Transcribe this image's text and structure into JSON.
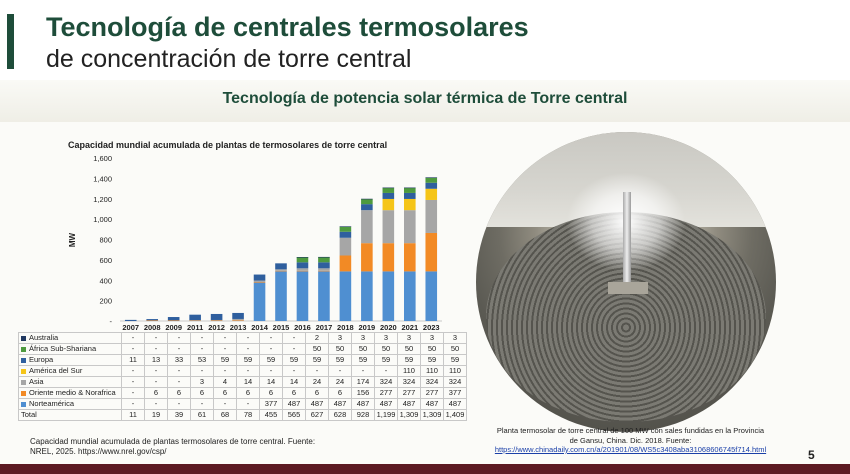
{
  "header": {
    "title_line1": "Tecnología de centrales termosolares",
    "title_line2": "de concentración de torre central",
    "subtitle": "Tecnología de potencia solar térmica de Torre central"
  },
  "chart_data": {
    "type": "bar",
    "stacked": true,
    "title": "Capacidad mundial acumulada de plantas de termosolares de torre central",
    "ylabel": "MW",
    "xlabel": "",
    "ylim": [
      0,
      1600
    ],
    "yticks": [
      "1,600",
      "1,400",
      "1,200",
      "1,000",
      "800",
      "600",
      "400",
      "200",
      "-"
    ],
    "categories": [
      "2007",
      "2008",
      "2009",
      "2011",
      "2012",
      "2013",
      "2014",
      "2015",
      "2016",
      "2017",
      "2018",
      "2019",
      "2020",
      "2021",
      "2023"
    ],
    "series": [
      {
        "name": "Norteamérica",
        "color": "#4f8fd1",
        "values": [
          0,
          0,
          0,
          0,
          0,
          0,
          377,
          487,
          487,
          487,
          487,
          487,
          487,
          487,
          487
        ],
        "display": [
          "-",
          "-",
          "-",
          "-",
          "-",
          "-",
          "377",
          "487",
          "487",
          "487",
          "487",
          "487",
          "487",
          "487",
          "487"
        ]
      },
      {
        "name": "Oriente medio & Norafrica",
        "color": "#f28a25",
        "values": [
          0,
          6,
          6,
          6,
          6,
          6,
          6,
          6,
          6,
          6,
          156,
          277,
          277,
          277,
          377
        ],
        "display": [
          "-",
          "6",
          "6",
          "6",
          "6",
          "6",
          "6",
          "6",
          "6",
          "6",
          "156",
          "277",
          "277",
          "277",
          "377"
        ]
      },
      {
        "name": "Asia",
        "color": "#a6a6a6",
        "values": [
          0,
          0,
          0,
          3,
          4,
          14,
          14,
          14,
          24,
          24,
          174,
          324,
          324,
          324,
          324
        ],
        "display": [
          "-",
          "-",
          "-",
          "3",
          "4",
          "14",
          "14",
          "14",
          "24",
          "24",
          "174",
          "324",
          "324",
          "324",
          "324"
        ]
      },
      {
        "name": "América del Sur",
        "color": "#f5c518",
        "values": [
          0,
          0,
          0,
          0,
          0,
          0,
          0,
          0,
          0,
          0,
          0,
          0,
          110,
          110,
          110
        ],
        "display": [
          "-",
          "-",
          "-",
          "-",
          "-",
          "-",
          "-",
          "-",
          "-",
          "-",
          "-",
          "-",
          "110",
          "110",
          "110"
        ]
      },
      {
        "name": "Europa",
        "color": "#2f5f9e",
        "values": [
          11,
          13,
          33,
          53,
          59,
          59,
          59,
          59,
          59,
          59,
          59,
          59,
          59,
          59,
          59
        ],
        "display": [
          "11",
          "13",
          "33",
          "53",
          "59",
          "59",
          "59",
          "59",
          "59",
          "59",
          "59",
          "59",
          "59",
          "59",
          "59"
        ]
      },
      {
        "name": "África Sub-Shariana",
        "color": "#4e9a3f",
        "values": [
          0,
          0,
          0,
          0,
          0,
          0,
          0,
          0,
          50,
          50,
          50,
          50,
          50,
          50,
          50
        ],
        "display": [
          "-",
          "-",
          "-",
          "-",
          "-",
          "-",
          "-",
          "-",
          "50",
          "50",
          "50",
          "50",
          "50",
          "50",
          "50"
        ]
      },
      {
        "name": "Australia",
        "color": "#1f3760",
        "values": [
          0,
          0,
          0,
          0,
          0,
          0,
          0,
          0,
          2,
          3,
          3,
          3,
          3,
          3,
          3
        ],
        "display": [
          "-",
          "-",
          "-",
          "-",
          "-",
          "-",
          "-",
          "-",
          "2",
          "3",
          "3",
          "3",
          "3",
          "3",
          "3"
        ]
      }
    ],
    "total_label": "Total",
    "totals": [
      "11",
      "19",
      "39",
      "61",
      "68",
      "78",
      "455",
      "565",
      "627",
      "628",
      "928",
      "1,199",
      "1,309",
      "1,309",
      "1,409"
    ]
  },
  "source_left": {
    "line1": "Capacidad mundial acumulada de plantas termosolares de torre central. Fuente:",
    "line2": "NREL, 2025. https://www.nrel.gov/csp/"
  },
  "photo_caption": {
    "line1": "Planta termosolar de torre central de 100 MW con sales fundidas en la Provincia",
    "line2": "de Gansu, China. Dic. 2018. Fuente:",
    "link": "https://www.chinadaily.com.cn/a/201901/08/WS5c3408aba31068606745f714.html"
  },
  "page_number": "5"
}
